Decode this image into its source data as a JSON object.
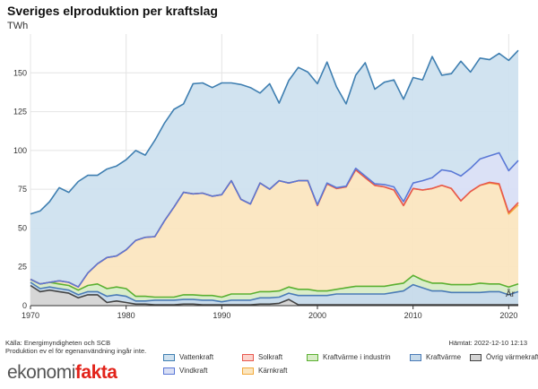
{
  "header": {
    "title": "Sveriges elproduktion per kraftslag",
    "unit": "TWh"
  },
  "footer": {
    "source": "Källa: Energimyndigheten och SCB",
    "permission": "Produktion ev el för egenanvändning ingår inte.",
    "updated": "Hämtat: 2022-12-10 12:13",
    "logo_part1": "ekonomi",
    "logo_part2": "fakta"
  },
  "chart_data": {
    "type": "area",
    "stacked": true,
    "xlabel": "År",
    "ylabel": "TWh",
    "xlim": [
      1970,
      2021
    ],
    "ylim": [
      0,
      175
    ],
    "x_ticks": [
      1970,
      1980,
      1990,
      2000,
      2010,
      2020
    ],
    "y_ticks": [
      0,
      25,
      50,
      75,
      100,
      125,
      150
    ],
    "grid": true,
    "x": [
      1970,
      1971,
      1972,
      1973,
      1974,
      1975,
      1976,
      1977,
      1978,
      1979,
      1980,
      1981,
      1982,
      1983,
      1984,
      1985,
      1986,
      1987,
      1988,
      1989,
      1990,
      1991,
      1992,
      1993,
      1994,
      1995,
      1996,
      1997,
      1998,
      1999,
      2000,
      2001,
      2002,
      2003,
      2004,
      2005,
      2006,
      2007,
      2008,
      2009,
      2010,
      2011,
      2012,
      2013,
      2014,
      2015,
      2016,
      2017,
      2018,
      2019,
      2020,
      2021
    ],
    "series": [
      {
        "name": "Övrig värmekraft",
        "color": "#444444",
        "fill": "#d4d4d4",
        "values": [
          13,
          9,
          10,
          9,
          8,
          5,
          7,
          7,
          2,
          3,
          2,
          1,
          1,
          0.5,
          0.5,
          0.5,
          1,
          1,
          0.5,
          0.5,
          0.5,
          0.5,
          0.5,
          0.5,
          1,
          1,
          1.5,
          4,
          0.5,
          0.5,
          0.5,
          0.5,
          0.5,
          0.5,
          0.5,
          0.5,
          0.5,
          0.5,
          0.5,
          0.5,
          0.5,
          0.5,
          0.5,
          0.5,
          0.5,
          0.5,
          0.5,
          0.5,
          0.5,
          0.5,
          0.5,
          0.5
        ]
      },
      {
        "name": "Kraftvärme",
        "color": "#4a7bb7",
        "fill": "#c6daea",
        "values": [
          2,
          2,
          2,
          2,
          2,
          2,
          2,
          2,
          4,
          4,
          4,
          2,
          2,
          3,
          3,
          3,
          3,
          3,
          3,
          3,
          2,
          3,
          3,
          3,
          4,
          4,
          4,
          4,
          6,
          6,
          6,
          6,
          7,
          7,
          7,
          7,
          7,
          7,
          8,
          9,
          13,
          11,
          9,
          9,
          8,
          8,
          8,
          8,
          8.5,
          8.5,
          6.5,
          8.5
        ]
      },
      {
        "name": "Kraftvärme i industrin",
        "color": "#5bb031",
        "fill": "#d8ecc7",
        "values": [
          2,
          3,
          3,
          3,
          3,
          3,
          4,
          5,
          5,
          5,
          5,
          3,
          3,
          2,
          2,
          2,
          3,
          3,
          3,
          3,
          3,
          4,
          4,
          4,
          4,
          4,
          4,
          4,
          4,
          4,
          3,
          3,
          3,
          4,
          5,
          5,
          5,
          5,
          5,
          5,
          6,
          5,
          5,
          5,
          5,
          5,
          5,
          6,
          5,
          5,
          5,
          5
        ]
      },
      {
        "name": "Kärnkraft",
        "color": "#f2a93b",
        "fill": "#fbe6c0",
        "values": [
          0,
          0,
          0,
          2,
          2,
          2,
          8,
          13,
          20,
          20,
          25,
          36,
          38,
          39,
          49,
          58,
          66,
          65,
          66,
          64,
          66,
          73,
          61,
          58,
          70,
          66,
          71,
          67,
          70,
          70,
          55,
          69,
          65,
          65,
          75,
          70,
          65,
          64,
          61,
          50,
          56,
          58,
          61,
          63,
          62,
          54,
          60,
          63,
          65,
          64,
          47,
          51
        ]
      },
      {
        "name": "Solkraft",
        "color": "#e8574e",
        "fill": "#fbd3cc",
        "values": [
          0,
          0,
          0,
          0,
          0,
          0,
          0,
          0,
          0,
          0,
          0,
          0,
          0,
          0,
          0,
          0,
          0,
          0,
          0,
          0,
          0,
          0,
          0,
          0,
          0,
          0,
          0,
          0,
          0,
          0,
          0,
          0,
          0,
          0,
          0,
          0,
          0,
          0,
          0,
          0,
          0,
          0,
          0,
          0,
          0,
          0,
          0,
          0,
          0.5,
          0.5,
          1,
          1.5
        ]
      },
      {
        "name": "Vindkraft",
        "color": "#5a78d6",
        "fill": "#d9dff5",
        "values": [
          0,
          0,
          0,
          0,
          0,
          0,
          0,
          0,
          0,
          0,
          0,
          0,
          0,
          0,
          0,
          0,
          0,
          0,
          0,
          0,
          0,
          0,
          0,
          0,
          0,
          0,
          0,
          0,
          0,
          0,
          0.5,
          0.5,
          0.5,
          0.5,
          1,
          1,
          1,
          1.5,
          2,
          2.5,
          3.5,
          6,
          7,
          10,
          11,
          16,
          15,
          17,
          17,
          20,
          27,
          27
        ]
      },
      {
        "name": "Vattenkraft",
        "color": "#3f7fb1",
        "fill": "#cfe1ef",
        "values": [
          42,
          47,
          52,
          60,
          58,
          68,
          63,
          57,
          57,
          58,
          58,
          58,
          53,
          62,
          63,
          63,
          57,
          71,
          71,
          70,
          72,
          63,
          74,
          75,
          58,
          68,
          50,
          66,
          73,
          70,
          78,
          78,
          65,
          53,
          60,
          73,
          61,
          66,
          69,
          66,
          68,
          65,
          78,
          61,
          63,
          74,
          62,
          65,
          62,
          64,
          71,
          71
        ]
      }
    ],
    "stack_order": [
      "Övrig värmekraft",
      "Kraftvärme",
      "Kraftvärme i industrin",
      "Kärnkraft",
      "Solkraft",
      "Vindkraft",
      "Vattenkraft"
    ],
    "legend_order": [
      "Vattenkraft",
      "Solkraft",
      "Kraftvärme i industrin",
      "Kraftvärme",
      "Övrig värmekraft",
      "Vindkraft",
      "Kärnkraft"
    ],
    "legend_position": "bottom"
  }
}
